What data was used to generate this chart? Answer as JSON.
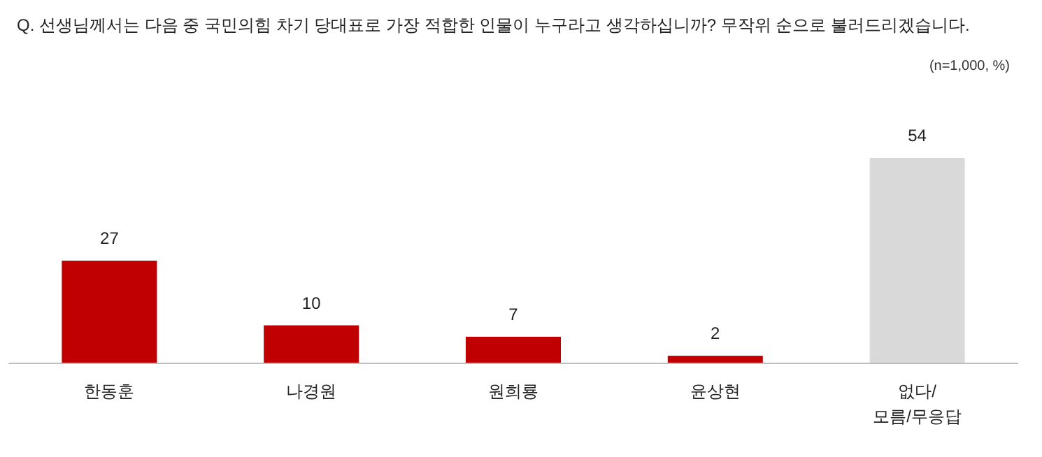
{
  "chart_data": {
    "type": "bar",
    "title": "Q. 선생님께서는 다음 중 국민의힘 차기 당대표로 가장 적합한 인물이 누구라고 생각하십니까? 무작위 순으로 불러드리겠습니다.",
    "annotations": [
      "(n=1,000,  %)"
    ],
    "categories": [
      "한동훈",
      "나경원",
      "원희룡",
      "윤상현",
      "없다/\n모름/무응답"
    ],
    "values": [
      27,
      10,
      7,
      2,
      54
    ],
    "colors": [
      "#c00000",
      "#c00000",
      "#c00000",
      "#c00000",
      "#d9d9d9"
    ],
    "data_labels": true
  }
}
